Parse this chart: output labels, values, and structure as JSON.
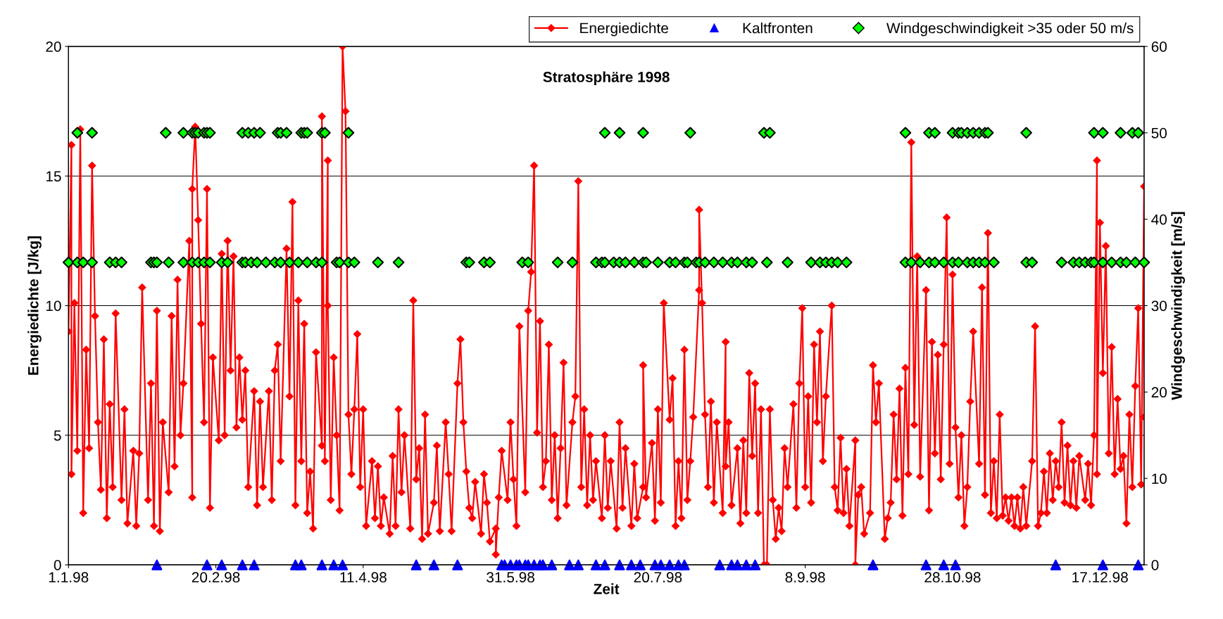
{
  "chart_data": {
    "type": "line",
    "title": "Stratosphäre 1998",
    "xlabel": "Zeit",
    "ylabel": "Energiedichte [J/kg]",
    "y2label": "Windgeschwindigkeit [m/s]",
    "xlim": [
      "1998-01-01",
      "1999-01-01"
    ],
    "xticks": [
      {
        "value": "1998-01-01",
        "label": "1.1.98"
      },
      {
        "value": "1998-02-20",
        "label": "20.2.98"
      },
      {
        "value": "1998-04-11",
        "label": "11.4.98"
      },
      {
        "value": "1998-05-31",
        "label": "31.5.98"
      },
      {
        "value": "1998-07-20",
        "label": "20.7.98"
      },
      {
        "value": "1998-09-08",
        "label": "8.9.98"
      },
      {
        "value": "1998-10-28",
        "label": "28.10.98"
      },
      {
        "value": "1998-12-17",
        "label": "17.12.98"
      }
    ],
    "ylim": [
      0,
      20
    ],
    "yticks": [
      0,
      5,
      10,
      15,
      20
    ],
    "y2lim": [
      0,
      60
    ],
    "y2ticks": [
      0,
      10,
      20,
      30,
      40,
      50,
      60
    ],
    "grid": "y",
    "legend": "top right",
    "series": [
      {
        "name": "Energiedichte",
        "color": "#ff0000",
        "marker": "diamond",
        "line_style": "solid",
        "x": [
          "1998-01-01",
          "1998-01-02",
          "1998-01-02",
          "1998-01-03",
          "1998-01-04",
          "1998-01-05",
          "1998-01-06",
          "1998-01-07",
          "1998-01-08",
          "1998-01-09",
          "1998-01-10",
          "1998-01-11",
          "1998-01-12",
          "1998-01-13",
          "1998-01-14",
          "1998-01-15",
          "1998-01-16",
          "1998-01-17",
          "1998-01-19",
          "1998-01-20",
          "1998-01-21",
          "1998-01-23",
          "1998-01-24",
          "1998-01-25",
          "1998-01-26",
          "1998-01-28",
          "1998-01-29",
          "1998-01-30",
          "1998-01-31",
          "1998-02-01",
          "1998-02-02",
          "1998-02-04",
          "1998-02-05",
          "1998-02-06",
          "1998-02-07",
          "1998-02-08",
          "1998-02-09",
          "1998-02-11",
          "1998-02-12",
          "1998-02-12",
          "1998-02-13",
          "1998-02-14",
          "1998-02-15",
          "1998-02-16",
          "1998-02-17",
          "1998-02-18",
          "1998-02-19",
          "1998-02-21",
          "1998-02-22",
          "1998-02-23",
          "1998-02-24",
          "1998-02-25",
          "1998-02-26",
          "1998-02-27",
          "1998-02-28",
          "1998-03-01",
          "1998-03-02",
          "1998-03-03",
          "1998-03-05",
          "1998-03-06",
          "1998-03-07",
          "1998-03-08",
          "1998-03-10",
          "1998-03-11",
          "1998-03-12",
          "1998-03-13",
          "1998-03-14",
          "1998-03-16",
          "1998-03-17",
          "1998-03-18",
          "1998-03-19",
          "1998-03-20",
          "1998-03-21",
          "1998-03-22",
          "1998-03-23",
          "1998-03-24",
          "1998-03-25",
          "1998-03-26",
          "1998-03-28",
          "1998-03-28",
          "1998-03-29",
          "1998-03-30",
          "1998-03-30",
          "1998-03-31",
          "1998-04-01",
          "1998-04-02",
          "1998-04-03",
          "1998-04-04",
          "1998-04-05",
          "1998-04-06",
          "1998-04-07",
          "1998-04-08",
          "1998-04-09",
          "1998-04-10",
          "1998-04-11",
          "1998-04-12",
          "1998-04-14",
          "1998-04-15",
          "1998-04-16",
          "1998-04-17",
          "1998-04-18",
          "1998-04-20",
          "1998-04-21",
          "1998-04-22",
          "1998-04-23",
          "1998-04-24",
          "1998-04-25",
          "1998-04-27",
          "1998-04-28",
          "1998-04-29",
          "1998-04-30",
          "1998-05-01",
          "1998-05-02",
          "1998-05-03",
          "1998-05-05",
          "1998-05-06",
          "1998-05-07",
          "1998-05-09",
          "1998-05-10",
          "1998-05-11",
          "1998-05-13",
          "1998-05-14",
          "1998-05-15",
          "1998-05-16",
          "1998-05-17",
          "1998-05-18",
          "1998-05-19",
          "1998-05-21",
          "1998-05-22",
          "1998-05-23",
          "1998-05-24",
          "1998-05-26",
          "1998-05-26",
          "1998-05-27",
          "1998-05-28",
          "1998-05-30",
          "1998-05-31",
          "1998-06-01",
          "1998-06-02",
          "1998-06-03",
          "1998-06-05",
          "1998-06-06",
          "1998-06-07",
          "1998-06-08",
          "1998-06-09",
          "1998-06-10",
          "1998-06-11",
          "1998-06-12",
          "1998-06-13",
          "1998-06-14",
          "1998-06-15",
          "1998-06-16",
          "1998-06-17",
          "1998-06-18",
          "1998-06-19",
          "1998-06-21",
          "1998-06-22",
          "1998-06-23",
          "1998-06-24",
          "1998-06-25",
          "1998-06-26",
          "1998-06-27",
          "1998-06-28",
          "1998-06-29",
          "1998-07-01",
          "1998-07-02",
          "1998-07-03",
          "1998-07-04",
          "1998-07-06",
          "1998-07-07",
          "1998-07-08",
          "1998-07-09",
          "1998-07-11",
          "1998-07-12",
          "1998-07-13",
          "1998-07-15",
          "1998-07-15",
          "1998-07-16",
          "1998-07-18",
          "1998-07-19",
          "1998-07-20",
          "1998-07-21",
          "1998-07-22",
          "1998-07-24",
          "1998-07-25",
          "1998-07-26",
          "1998-07-27",
          "1998-07-28",
          "1998-07-29",
          "1998-07-30",
          "1998-07-31",
          "1998-08-01",
          "1998-08-03",
          "1998-08-03",
          "1998-08-04",
          "1998-08-05",
          "1998-08-06",
          "1998-08-07",
          "1998-08-08",
          "1998-08-09",
          "1998-08-11",
          "1998-08-12",
          "1998-08-12",
          "1998-08-13",
          "1998-08-14",
          "1998-08-16",
          "1998-08-17",
          "1998-08-18",
          "1998-08-19",
          "1998-08-20",
          "1998-08-21",
          "1998-08-22",
          "1998-08-23",
          "1998-08-24",
          "1998-08-25",
          "1998-08-26",
          "1998-08-27",
          "1998-08-28",
          "1998-08-29",
          "1998-08-30",
          "1998-08-31",
          "1998-09-01",
          "1998-09-02",
          "1998-09-04",
          "1998-09-05",
          "1998-09-06",
          "1998-09-07",
          "1998-09-08",
          "1998-09-09",
          "1998-09-10",
          "1998-09-11",
          "1998-09-12",
          "1998-09-13",
          "1998-09-14",
          "1998-09-15",
          "1998-09-17",
          "1998-09-18",
          "1998-09-19",
          "1998-09-20",
          "1998-09-21",
          "1998-09-22",
          "1998-09-23",
          "1998-09-25",
          "1998-09-25",
          "1998-09-26",
          "1998-09-27",
          "1998-09-28",
          "1998-09-30",
          "1998-10-01",
          "1998-10-02",
          "1998-10-03",
          "1998-10-05",
          "1998-10-06",
          "1998-10-07",
          "1998-10-08",
          "1998-10-09",
          "1998-10-10",
          "1998-10-11",
          "1998-10-12",
          "1998-10-13",
          "1998-10-14",
          "1998-10-15",
          "1998-10-16",
          "1998-10-17",
          "1998-10-19",
          "1998-10-20",
          "1998-10-21",
          "1998-10-22",
          "1998-10-23",
          "1998-10-24",
          "1998-10-25",
          "1998-10-26",
          "1998-10-27",
          "1998-10-28",
          "1998-10-29",
          "1998-10-30",
          "1998-10-31",
          "1998-11-01",
          "1998-11-02",
          "1998-11-03",
          "1998-11-04",
          "1998-11-06",
          "1998-11-07",
          "1998-11-08",
          "1998-11-09",
          "1998-11-10",
          "1998-11-11",
          "1998-11-12",
          "1998-11-13",
          "1998-11-14",
          "1998-11-15",
          "1998-11-16",
          "1998-11-17",
          "1998-11-18",
          "1998-11-19",
          "1998-11-20",
          "1998-11-21",
          "1998-11-22",
          "1998-11-24",
          "1998-11-25",
          "1998-11-26",
          "1998-11-27",
          "1998-11-28",
          "1998-11-29",
          "1998-11-30",
          "1998-12-01",
          "1998-12-02",
          "1998-12-03",
          "1998-12-04",
          "1998-12-05",
          "1998-12-06",
          "1998-12-07",
          "1998-12-08",
          "1998-12-09",
          "1998-12-10",
          "1998-12-12",
          "1998-12-13",
          "1998-12-14",
          "1998-12-15",
          "1998-12-16",
          "1998-12-16",
          "1998-12-17",
          "1998-12-18",
          "1998-12-19",
          "1998-12-20",
          "1998-12-21",
          "1998-12-22",
          "1998-12-23",
          "1998-12-24",
          "1998-12-25",
          "1998-12-26",
          "1998-12-27",
          "1998-12-28",
          "1998-12-29",
          "1998-12-30",
          "1998-12-31",
          "1999-01-01",
          "1999-01-01"
        ],
        "values": [
          9.0,
          16.2,
          3.5,
          10.1,
          4.4,
          16.8,
          2.0,
          8.3,
          4.5,
          15.4,
          9.6,
          5.5,
          2.9,
          8.7,
          1.8,
          6.2,
          3.0,
          9.7,
          2.5,
          6.0,
          1.6,
          4.4,
          1.5,
          4.3,
          10.7,
          2.5,
          7.0,
          1.5,
          9.8,
          1.3,
          5.5,
          2.8,
          9.6,
          3.8,
          11.0,
          5.0,
          7.0,
          12.5,
          2.6,
          14.5,
          16.9,
          13.3,
          9.3,
          5.5,
          14.5,
          2.2,
          8.0,
          4.8,
          12.0,
          5.0,
          12.5,
          7.5,
          11.9,
          5.3,
          8.0,
          5.6,
          7.5,
          3.0,
          6.7,
          2.3,
          6.3,
          3.0,
          6.7,
          2.5,
          7.5,
          8.5,
          4.0,
          12.2,
          6.5,
          14.0,
          2.3,
          10.2,
          4.0,
          9.3,
          2.0,
          3.6,
          1.4,
          8.2,
          4.6,
          17.3,
          4.0,
          15.6,
          10.0,
          2.5,
          8.0,
          5.0,
          2.1,
          20.0,
          17.5,
          5.8,
          3.5,
          6.0,
          8.9,
          3.0,
          6.0,
          1.5,
          4.0,
          1.8,
          3.8,
          1.5,
          2.6,
          1.2,
          4.2,
          1.5,
          6.0,
          2.8,
          5.0,
          1.4,
          10.2,
          3.3,
          4.5,
          1.0,
          5.8,
          1.2,
          2.4,
          4.6,
          1.3,
          5.5,
          3.5,
          1.3,
          7.0,
          8.7,
          5.5,
          3.6,
          2.2,
          1.8,
          3.2,
          1.2,
          3.5,
          2.4,
          0.9,
          1.4,
          0.4,
          2.6,
          4.4,
          2.5,
          5.5,
          3.3,
          1.5,
          9.2,
          2.8,
          9.8,
          11.3,
          15.4,
          5.1,
          9.4,
          3.0,
          4.0,
          8.5,
          2.5,
          5.0,
          1.8,
          4.5,
          7.8,
          2.3,
          5.5,
          6.5,
          14.8,
          3.0,
          6.0,
          2.3,
          5.0,
          2.5,
          4.0,
          1.8,
          5.0,
          2.2,
          4.0,
          1.4,
          5.5,
          2.2,
          4.5,
          1.5,
          3.9,
          1.8,
          3.0,
          7.7,
          2.6,
          4.7,
          1.7,
          6.0,
          2.4,
          10.1,
          5.6,
          7.2,
          1.5,
          4.0,
          1.8,
          8.3,
          2.5,
          4.0,
          5.7,
          10.6,
          13.7,
          10.1,
          5.8,
          3.0,
          6.3,
          2.4,
          5.5,
          2.0,
          8.6,
          3.8,
          5.5,
          2.3,
          4.5,
          1.6,
          4.8,
          2.0,
          7.4,
          4.2,
          7.0,
          2.0,
          6.0,
          0.0,
          0.0,
          6.0,
          2.5,
          1.0,
          2.2,
          1.3,
          4.5,
          3.0,
          6.2,
          2.2,
          7.0,
          9.9,
          3.0,
          6.5,
          2.4,
          8.5,
          5.5,
          9.0,
          4.0,
          6.5,
          10.0,
          3.0,
          2.1,
          4.9,
          2.0,
          3.7,
          1.5,
          4.8,
          0.0,
          2.7,
          3.0,
          1.2,
          2.0,
          7.7,
          5.5,
          7.0,
          1.0,
          1.8,
          2.4,
          5.8,
          3.3,
          6.8,
          1.9,
          7.6,
          3.5,
          16.3,
          5.4,
          11.9,
          3.4,
          10.6,
          2.1,
          8.6,
          4.3,
          8.1,
          3.3,
          8.5,
          13.4,
          3.9,
          11.2,
          5.3,
          2.6,
          5.0,
          1.5,
          3.0,
          6.3,
          9.0,
          3.9,
          10.7,
          2.7,
          12.8,
          2.0,
          4.0,
          1.8,
          5.8,
          1.9,
          2.6,
          1.7,
          2.6,
          1.5,
          2.6,
          1.4,
          3.0,
          1.5,
          4.0,
          9.2,
          1.5,
          2.0,
          3.6,
          2.0,
          4.3,
          2.5,
          4.0,
          3.0,
          5.5,
          2.4,
          4.6,
          2.3,
          4.0,
          2.2,
          4.2,
          2.5,
          3.9,
          2.3,
          5.0,
          15.6,
          3.5,
          13.2,
          7.4,
          12.3,
          4.3,
          8.4,
          3.5,
          6.4,
          3.7,
          4.2,
          1.6,
          5.8,
          3.0,
          6.9,
          9.9,
          3.1,
          14.6,
          5.7
        ]
      },
      {
        "name": "Kaltfronten",
        "type": "scatter",
        "color": "#0000ff",
        "marker": "triangle",
        "x": [
          "1998-01-31",
          "1998-02-17",
          "1998-02-22",
          "1998-03-01",
          "1998-03-05",
          "1998-03-19",
          "1998-03-21",
          "1998-03-28",
          "1998-04-01",
          "1998-04-04",
          "1998-04-29",
          "1998-05-05",
          "1998-05-13",
          "1998-05-28",
          "1998-05-29",
          "1998-05-31",
          "1998-06-02",
          "1998-06-03",
          "1998-06-05",
          "1998-06-06",
          "1998-06-08",
          "1998-06-10",
          "1998-06-11",
          "1998-06-14",
          "1998-06-20",
          "1998-06-23",
          "1998-06-29",
          "1998-07-02",
          "1998-07-07",
          "1998-07-11",
          "1998-07-14",
          "1998-07-19",
          "1998-07-21",
          "1998-07-24",
          "1998-07-27",
          "1998-07-29",
          "1998-08-10",
          "1998-08-14",
          "1998-08-16",
          "1998-08-19",
          "1998-08-22",
          "1998-10-01",
          "1998-10-19",
          "1998-10-25",
          "1998-10-29",
          "1998-12-02",
          "1998-12-18",
          "1998-12-30"
        ],
        "values": [
          0,
          0,
          0,
          0,
          0,
          0,
          0,
          0,
          0,
          0,
          0,
          0,
          0,
          0,
          0,
          0,
          0,
          0,
          0,
          0,
          0,
          0,
          0,
          0,
          0,
          0,
          0,
          0,
          0,
          0,
          0,
          0,
          0,
          0,
          0,
          0,
          0,
          0,
          0,
          0,
          0,
          0,
          0,
          0,
          0,
          0,
          0,
          0
        ]
      },
      {
        "name": "Windgeschwindigkeit >35 oder 50 m/s",
        "type": "scatter",
        "color": "#00ff00",
        "marker": "diamond",
        "axis": "y2",
        "x": [
          "1998-01-04",
          "1998-01-09",
          "1998-02-03",
          "1998-02-09",
          "1998-02-12",
          "1998-02-13",
          "1998-02-14",
          "1998-02-16",
          "1998-02-17",
          "1998-02-18",
          "1998-03-01",
          "1998-03-03",
          "1998-03-05",
          "1998-03-07",
          "1998-03-13",
          "1998-03-14",
          "1998-03-16",
          "1998-03-21",
          "1998-03-22",
          "1998-03-23",
          "1998-03-28",
          "1998-03-29",
          "1998-04-06",
          "1998-07-02",
          "1998-07-07",
          "1998-07-15",
          "1998-07-31",
          "1998-08-25",
          "1998-08-27",
          "1998-10-12",
          "1998-10-20",
          "1998-10-22",
          "1998-10-28",
          "1998-10-30",
          "1998-10-31",
          "1998-11-02",
          "1998-11-04",
          "1998-11-06",
          "1998-11-08",
          "1998-11-09",
          "1998-11-22",
          "1998-12-15",
          "1998-12-18",
          "1998-12-24",
          "1998-12-28",
          "1998-12-30",
          "1998-01-01",
          "1998-01-04",
          "1998-01-06",
          "1998-01-09",
          "1998-01-15",
          "1998-01-17",
          "1998-01-19",
          "1998-01-29",
          "1998-01-30",
          "1998-01-31",
          "1998-02-04",
          "1998-02-09",
          "1998-02-12",
          "1998-02-14",
          "1998-02-16",
          "1998-02-18",
          "1998-02-22",
          "1998-02-24",
          "1998-03-01",
          "1998-03-02",
          "1998-03-04",
          "1998-03-06",
          "1998-03-09",
          "1998-03-12",
          "1998-03-14",
          "1998-03-17",
          "1998-03-20",
          "1998-03-23",
          "1998-03-26",
          "1998-03-28",
          "1998-04-02",
          "1998-04-03",
          "1998-04-06",
          "1998-04-08",
          "1998-04-16",
          "1998-04-23",
          "1998-05-16",
          "1998-05-17",
          "1998-05-22",
          "1998-05-24",
          "1998-06-04",
          "1998-06-06",
          "1998-06-16",
          "1998-06-21",
          "1998-06-29",
          "1998-07-01",
          "1998-07-02",
          "1998-07-05",
          "1998-07-07",
          "1998-07-09",
          "1998-07-12",
          "1998-07-15",
          "1998-07-16",
          "1998-07-20",
          "1998-07-24",
          "1998-07-26",
          "1998-07-29",
          "1998-07-30",
          "1998-08-02",
          "1998-08-03",
          "1998-08-05",
          "1998-08-08",
          "1998-08-11",
          "1998-08-14",
          "1998-08-16",
          "1998-08-19",
          "1998-08-21",
          "1998-08-26",
          "1998-09-02",
          "1998-09-10",
          "1998-09-13",
          "1998-09-15",
          "1998-09-17",
          "1998-09-19",
          "1998-09-22",
          "1998-10-12",
          "1998-10-14",
          "1998-10-17",
          "1998-10-20",
          "1998-10-22",
          "1998-10-25",
          "1998-10-28",
          "1998-10-30",
          "1998-11-02",
          "1998-11-04",
          "1998-11-06",
          "1998-11-08",
          "1998-11-11",
          "1998-11-22",
          "1998-11-24",
          "1998-12-04",
          "1998-12-08",
          "1998-12-10",
          "1998-12-12",
          "1998-12-14",
          "1998-12-15",
          "1998-12-18",
          "1998-12-21",
          "1998-12-24",
          "1998-12-26",
          "1998-12-29",
          "1999-01-01"
        ],
        "values": [
          50,
          50,
          50,
          50,
          50,
          50,
          50,
          50,
          50,
          50,
          50,
          50,
          50,
          50,
          50,
          50,
          50,
          50,
          50,
          50,
          50,
          50,
          50,
          50,
          50,
          50,
          50,
          50,
          50,
          50,
          50,
          50,
          50,
          50,
          50,
          50,
          50,
          50,
          50,
          50,
          50,
          50,
          50,
          50,
          50,
          50,
          35,
          35,
          35,
          35,
          35,
          35,
          35,
          35,
          35,
          35,
          35,
          35,
          35,
          35,
          35,
          35,
          35,
          35,
          35,
          35,
          35,
          35,
          35,
          35,
          35,
          35,
          35,
          35,
          35,
          35,
          35,
          35,
          35,
          35,
          35,
          35,
          35,
          35,
          35,
          35,
          35,
          35,
          35,
          35,
          35,
          35,
          35,
          35,
          35,
          35,
          35,
          35,
          35,
          35,
          35,
          35,
          35,
          35,
          35,
          35,
          35,
          35,
          35,
          35,
          35,
          35,
          35,
          35,
          35,
          35,
          35,
          35,
          35,
          35,
          35,
          35,
          35,
          35,
          35,
          35,
          35,
          35,
          35,
          35,
          35,
          35,
          35,
          35,
          35,
          35,
          35,
          35,
          35,
          35,
          35,
          35,
          35,
          35,
          35,
          35,
          35,
          35
        ]
      }
    ]
  }
}
